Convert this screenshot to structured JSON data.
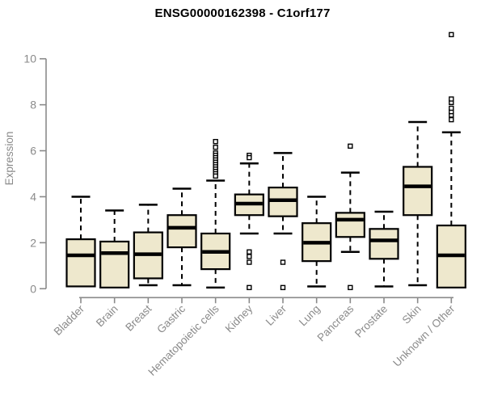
{
  "title": "ENSG00000162398 - C1orf177",
  "chart_data": {
    "type": "boxplot",
    "title": "ENSG00000162398 - C1orf177",
    "xlabel": "",
    "ylabel": "Expression",
    "ylim": [
      0,
      10
    ],
    "yticks": [
      0,
      2,
      4,
      6,
      8,
      10
    ],
    "grid": false,
    "legend": "none",
    "categories": [
      "Bladder",
      "Brain",
      "Breast",
      "Gastric",
      "Hematopoietic cells",
      "Kidney",
      "Liver",
      "Lung",
      "Pancreas",
      "Prostate",
      "Skin",
      "Unknown / Other"
    ],
    "boxes": [
      {
        "category": "Bladder",
        "whisker_low": null,
        "q1": 0.1,
        "median": 1.45,
        "q3": 2.15,
        "whisker_high": 4.0,
        "outliers": []
      },
      {
        "category": "Brain",
        "whisker_low": null,
        "q1": 0.05,
        "median": 1.55,
        "q3": 2.05,
        "whisker_high": 3.4,
        "outliers": []
      },
      {
        "category": "Breast",
        "whisker_low": 0.15,
        "q1": 0.45,
        "median": 1.5,
        "q3": 2.45,
        "whisker_high": 3.65,
        "outliers": []
      },
      {
        "category": "Gastric",
        "whisker_low": 0.15,
        "q1": 1.8,
        "median": 2.65,
        "q3": 3.2,
        "whisker_high": 4.35,
        "outliers": []
      },
      {
        "category": "Hematopoietic cells",
        "whisker_low": 0.05,
        "q1": 0.85,
        "median": 1.6,
        "q3": 2.4,
        "whisker_high": 4.7,
        "outliers": [
          6.4,
          6.15,
          5.9,
          5.8,
          5.7,
          5.6,
          5.5,
          5.4,
          5.3,
          5.2,
          5.1,
          5.0,
          4.9
        ]
      },
      {
        "category": "Kidney",
        "whisker_low": 2.4,
        "q1": 3.2,
        "median": 3.7,
        "q3": 4.1,
        "whisker_high": 5.45,
        "outliers": [
          5.8,
          5.7,
          1.6,
          1.4,
          1.15,
          0.05
        ]
      },
      {
        "category": "Liver",
        "whisker_low": 2.4,
        "q1": 3.15,
        "median": 3.85,
        "q3": 4.4,
        "whisker_high": 5.9,
        "outliers": [
          1.15,
          0.05
        ]
      },
      {
        "category": "Lung",
        "whisker_low": 0.1,
        "q1": 1.2,
        "median": 2.0,
        "q3": 2.85,
        "whisker_high": 4.0,
        "outliers": []
      },
      {
        "category": "Pancreas",
        "whisker_low": 1.6,
        "q1": 2.25,
        "median": 3.0,
        "q3": 3.3,
        "whisker_high": 5.05,
        "outliers": [
          6.2,
          0.05
        ]
      },
      {
        "category": "Prostate",
        "whisker_low": 0.1,
        "q1": 1.3,
        "median": 2.1,
        "q3": 2.6,
        "whisker_high": 3.35,
        "outliers": []
      },
      {
        "category": "Skin",
        "whisker_low": 0.15,
        "q1": 3.2,
        "median": 4.45,
        "q3": 5.3,
        "whisker_high": 7.25,
        "outliers": []
      },
      {
        "category": "Unknown / Other",
        "whisker_low": null,
        "q1": 0.05,
        "median": 1.45,
        "q3": 2.75,
        "whisker_high": 6.8,
        "outliers": [
          7.35,
          7.55,
          7.7,
          7.85,
          8.1,
          8.25,
          11.05
        ]
      }
    ],
    "colors": {
      "box_fill": "#EEE8CD",
      "box_stroke": "#000000",
      "median": "#000000",
      "whisker": "#000000",
      "outlier_stroke": "#000000",
      "axis": "#8a8a8a",
      "tick_label": "#8a8a8a",
      "axis_label": "#8a8a8a",
      "title": "#000000",
      "background": "#ffffff"
    }
  }
}
